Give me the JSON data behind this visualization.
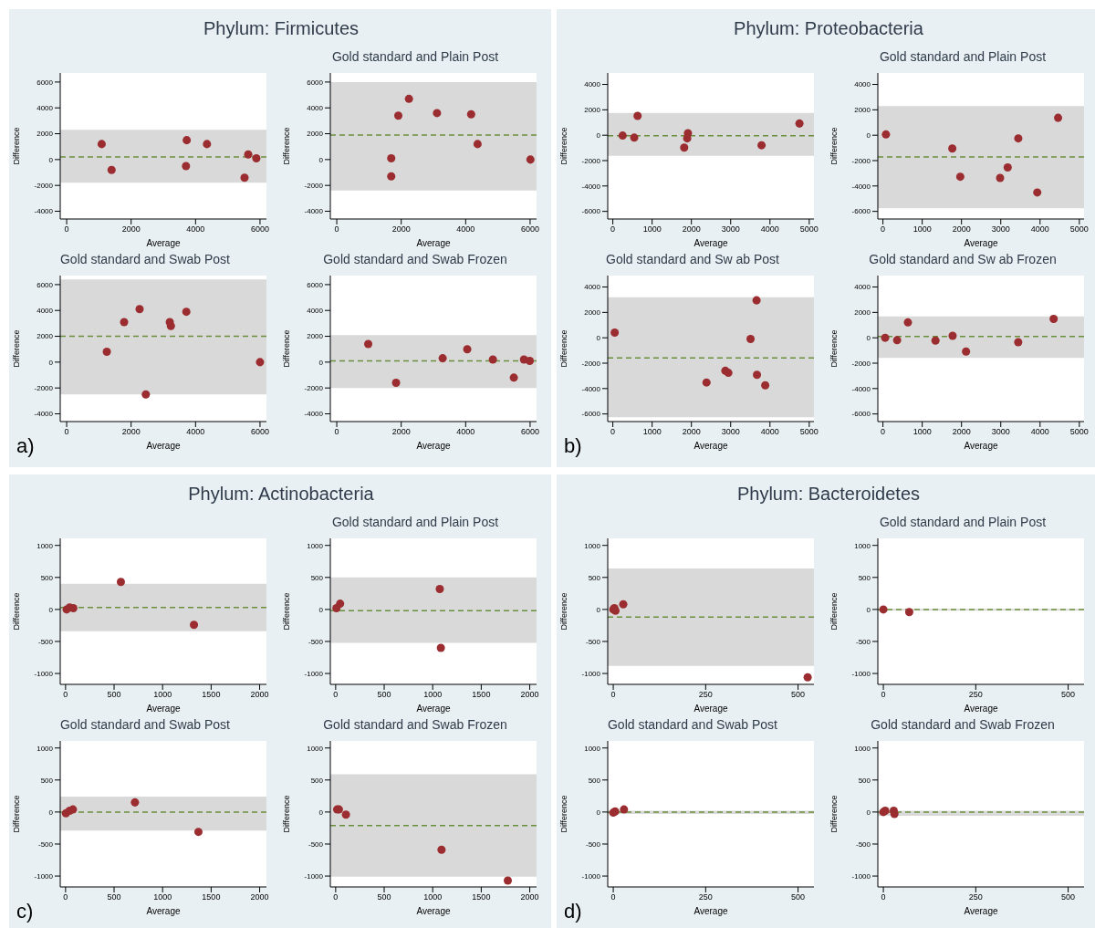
{
  "chart_data": [
    {
      "type": "scatter",
      "annotations": [
        "Phylum: Firmicutes",
        "a)"
      ],
      "xlabel": "Average",
      "ylabel": "Difference",
      "color": "#9b2d30",
      "marker": "circle",
      "x": [
        1086,
        1394,
        3726,
        3703,
        4354,
        5520,
        5634,
        5886
      ],
      "values": [
        1200,
        -800,
        1500,
        -500,
        1200,
        -1400,
        400,
        100
      ],
      "xlim": [
        -200,
        6200
      ],
      "ylim": [
        -4600,
        6700
      ],
      "xticks": [
        0,
        2000,
        4000,
        6000
      ],
      "yticks": [
        -4000,
        -2000,
        0,
        2000,
        4000,
        6000
      ],
      "bands": [
        {
          "axis": "y",
          "from": -1800,
          "to": 2300,
          "color": "#d9d9d9"
        }
      ],
      "ref_lines": [
        {
          "axis": "y",
          "value": 200,
          "color": "#6a8f3c",
          "line_style": "dashed"
        }
      ]
    },
    {
      "type": "scatter",
      "title": "Gold standard and Plain Post",
      "xlabel": "Average",
      "ylabel": "Difference",
      "color": "#9b2d30",
      "marker": "circle",
      "x": [
        1690,
        1690,
        1910,
        2240,
        3110,
        4170,
        4370,
        6010
      ],
      "values": [
        100,
        -1300,
        3400,
        4700,
        3600,
        3500,
        1200,
        0
      ],
      "xlim": [
        -200,
        6200
      ],
      "ylim": [
        -4600,
        6700
      ],
      "xticks": [
        0,
        2000,
        4000,
        6000
      ],
      "yticks": [
        -4000,
        -2000,
        0,
        2000,
        4000,
        6000
      ],
      "bands": [
        {
          "axis": "y",
          "from": -2400,
          "to": 6000,
          "color": "#d9d9d9"
        }
      ],
      "ref_lines": [
        {
          "axis": "y",
          "value": 1900,
          "color": "#6a8f3c",
          "line_style": "dashed"
        }
      ]
    },
    {
      "type": "scatter",
      "title": "Gold standard and Swab Post",
      "xlabel": "Average",
      "ylabel": "Difference",
      "color": "#9b2d30",
      "marker": "circle",
      "x": [
        1246,
        1783,
        2263,
        2457,
        3200,
        3234,
        3714,
        6000
      ],
      "values": [
        800,
        3100,
        4100,
        -2500,
        3100,
        2800,
        3900,
        0
      ],
      "xlim": [
        -200,
        6200
      ],
      "ylim": [
        -4600,
        6700
      ],
      "xticks": [
        0,
        2000,
        4000,
        6000
      ],
      "yticks": [
        -4000,
        -2000,
        0,
        2000,
        4000,
        6000
      ],
      "bands": [
        {
          "axis": "y",
          "from": -2500,
          "to": 6400,
          "color": "#d9d9d9"
        }
      ],
      "ref_lines": [
        {
          "axis": "y",
          "value": 2000,
          "color": "#6a8f3c",
          "line_style": "dashed"
        }
      ]
    },
    {
      "type": "scatter",
      "title": "Gold standard and Swab Frozen",
      "xlabel": "Average",
      "ylabel": "Difference",
      "color": "#9b2d30",
      "marker": "circle",
      "x": [
        976,
        1840,
        3286,
        4049,
        4845,
        5495,
        5809,
        5989
      ],
      "values": [
        1400,
        -1600,
        300,
        1000,
        200,
        -1200,
        200,
        100
      ],
      "xlim": [
        -200,
        6200
      ],
      "ylim": [
        -4600,
        6700
      ],
      "xticks": [
        0,
        2000,
        4000,
        6000
      ],
      "yticks": [
        -4000,
        -2000,
        0,
        2000,
        4000,
        6000
      ],
      "bands": [
        {
          "axis": "y",
          "from": -2000,
          "to": 2100,
          "color": "#d9d9d9"
        }
      ],
      "ref_lines": [
        {
          "axis": "y",
          "value": 100,
          "color": "#6a8f3c",
          "line_style": "dashed"
        }
      ]
    },
    {
      "type": "scatter",
      "annotations": [
        "Phylum: Proteobacteria",
        "b)"
      ],
      "xlabel": "Average",
      "ylabel": "Difference",
      "color": "#9b2d30",
      "marker": "circle",
      "x": [
        250,
        545,
        630,
        1817,
        1912,
        1893,
        3786,
        4751
      ],
      "values": [
        -30,
        -190,
        1520,
        -980,
        160,
        -250,
        -790,
        920
      ],
      "xlim": [
        -130,
        5120
      ],
      "ylim": [
        -6600,
        4900
      ],
      "xticks": [
        0,
        1000,
        2000,
        3000,
        4000,
        5000
      ],
      "yticks": [
        -6000,
        -4000,
        -2000,
        0,
        2000,
        4000
      ],
      "bands": [
        {
          "axis": "y",
          "from": -1620,
          "to": 1750,
          "color": "#d9d9d9"
        }
      ],
      "ref_lines": [
        {
          "axis": "y",
          "value": -50,
          "color": "#6a8f3c",
          "line_style": "dashed"
        }
      ]
    },
    {
      "type": "scatter",
      "title": "Gold standard and Plain Post",
      "xlabel": "Average",
      "ylabel": "Difference",
      "color": "#9b2d30",
      "marker": "circle",
      "x": [
        77,
        1766,
        1969,
        2983,
        3176,
        3446,
        3929,
        4459
      ],
      "values": [
        60,
        -1050,
        -3270,
        -3370,
        -2540,
        -250,
        -4510,
        1370
      ],
      "xlim": [
        -130,
        5120
      ],
      "ylim": [
        -6600,
        4900
      ],
      "xticks": [
        0,
        1000,
        2000,
        3000,
        4000,
        5000
      ],
      "yticks": [
        -6000,
        -4000,
        -2000,
        0,
        2000,
        4000
      ],
      "bands": [
        {
          "axis": "y",
          "from": -5750,
          "to": 2290,
          "color": "#d9d9d9"
        }
      ],
      "ref_lines": [
        {
          "axis": "y",
          "value": -1710,
          "color": "#6a8f3c",
          "line_style": "dashed"
        }
      ]
    },
    {
      "type": "scatter",
      "title": "Gold standard and Sw ab Post",
      "xlabel": "Average",
      "ylabel": "Difference",
      "color": "#9b2d30",
      "marker": "circle",
      "x": [
        48,
        2385,
        2864,
        2941,
        3506,
        3659,
        3669,
        3880
      ],
      "values": [
        410,
        -3520,
        -2600,
        -2760,
        -100,
        2950,
        -2920,
        -3740
      ],
      "xlim": [
        -130,
        5120
      ],
      "ylim": [
        -6600,
        4900
      ],
      "xticks": [
        0,
        1000,
        2000,
        3000,
        4000,
        5000
      ],
      "yticks": [
        -6000,
        -4000,
        -2000,
        0,
        2000,
        4000
      ],
      "bands": [
        {
          "axis": "y",
          "from": -6250,
          "to": 3200,
          "color": "#d9d9d9"
        }
      ],
      "ref_lines": [
        {
          "axis": "y",
          "value": -1590,
          "color": "#6a8f3c",
          "line_style": "dashed"
        }
      ]
    },
    {
      "type": "scatter",
      "title": "Gold standard and Sw ab Frozen",
      "xlabel": "Average",
      "ylabel": "Difference",
      "color": "#9b2d30",
      "marker": "circle",
      "x": [
        57,
        361,
        636,
        1338,
        1774,
        2116,
        3444,
        4346
      ],
      "values": [
        0,
        -190,
        1210,
        -220,
        160,
        -1080,
        -350,
        1490
      ],
      "xlim": [
        -130,
        5120
      ],
      "ylim": [
        -6600,
        4900
      ],
      "xticks": [
        0,
        1000,
        2000,
        3000,
        4000,
        5000
      ],
      "yticks": [
        -6000,
        -4000,
        -2000,
        0,
        2000,
        4000
      ],
      "bands": [
        {
          "axis": "y",
          "from": -1590,
          "to": 1680,
          "color": "#d9d9d9"
        }
      ],
      "ref_lines": [
        {
          "axis": "y",
          "value": 100,
          "color": "#6a8f3c",
          "line_style": "dashed"
        }
      ]
    },
    {
      "type": "scatter",
      "annotations": [
        "Phylum: Actinobacteria",
        "c)"
      ],
      "xlabel": "Average",
      "ylabel": "Difference",
      "color": "#9b2d30",
      "marker": "circle",
      "x": [
        11,
        42,
        80,
        570,
        1323
      ],
      "values": [
        0,
        30,
        20,
        430,
        -240
      ],
      "xlim": [
        -55,
        2070
      ],
      "ylim": [
        -1170,
        1110
      ],
      "xticks": [
        0,
        500,
        1000,
        1500,
        2000
      ],
      "yticks": [
        -1000,
        -500,
        0,
        500,
        1000
      ],
      "bands": [
        {
          "axis": "y",
          "from": -340,
          "to": 400,
          "color": "#d9d9d9"
        }
      ],
      "ref_lines": [
        {
          "axis": "y",
          "value": 30,
          "color": "#6a8f3c",
          "line_style": "dashed"
        }
      ]
    },
    {
      "type": "scatter",
      "title": "Gold standard and Plain Post",
      "xlabel": "Average",
      "ylabel": "Difference",
      "color": "#9b2d30",
      "marker": "circle",
      "x": [
        8,
        46,
        1073,
        1084
      ],
      "values": [
        20,
        90,
        320,
        -600
      ],
      "xlim": [
        -55,
        2070
      ],
      "ylim": [
        -1170,
        1110
      ],
      "xticks": [
        0,
        500,
        1000,
        1500,
        2000
      ],
      "yticks": [
        -1000,
        -500,
        0,
        500,
        1000
      ],
      "bands": [
        {
          "axis": "y",
          "from": -520,
          "to": 500,
          "color": "#d9d9d9"
        }
      ],
      "ref_lines": [
        {
          "axis": "y",
          "value": -20,
          "color": "#6a8f3c",
          "line_style": "dashed"
        }
      ]
    },
    {
      "type": "scatter",
      "title": "Gold standard and Swab Post",
      "xlabel": "Average",
      "ylabel": "Difference",
      "color": "#9b2d30",
      "marker": "circle",
      "x": [
        4,
        42,
        76,
        715,
        1369
      ],
      "values": [
        -20,
        20,
        40,
        150,
        -310
      ],
      "xlim": [
        -55,
        2070
      ],
      "ylim": [
        -1170,
        1110
      ],
      "xticks": [
        0,
        500,
        1000,
        1500,
        2000
      ],
      "yticks": [
        -1000,
        -500,
        0,
        500,
        1000
      ],
      "bands": [
        {
          "axis": "y",
          "from": -290,
          "to": 240,
          "color": "#d9d9d9"
        }
      ],
      "ref_lines": [
        {
          "axis": "y",
          "value": 0,
          "color": "#6a8f3c",
          "line_style": "dashed"
        }
      ]
    },
    {
      "type": "scatter",
      "title": "Gold standard and Swab Frozen",
      "xlabel": "Average",
      "ylabel": "Difference",
      "color": "#9b2d30",
      "marker": "circle",
      "x": [
        15,
        34,
        106,
        1091,
        1774
      ],
      "values": [
        40,
        40,
        -40,
        -590,
        -1070
      ],
      "xlim": [
        -55,
        2070
      ],
      "ylim": [
        -1170,
        1110
      ],
      "xticks": [
        0,
        500,
        1000,
        1500,
        2000
      ],
      "yticks": [
        -1000,
        -500,
        0,
        500,
        1000
      ],
      "bands": [
        {
          "axis": "y",
          "from": -1010,
          "to": 590,
          "color": "#d9d9d9"
        }
      ],
      "ref_lines": [
        {
          "axis": "y",
          "value": -210,
          "color": "#6a8f3c",
          "line_style": "dashed"
        }
      ]
    },
    {
      "type": "scatter",
      "annotations": [
        "Phylum: Bacteroidetes",
        "d)"
      ],
      "xlabel": "Average",
      "ylabel": "Difference",
      "color": "#9b2d30",
      "marker": "circle",
      "x": [
        0,
        3,
        6,
        27,
        526
      ],
      "values": [
        0,
        20,
        -20,
        80,
        -1060
      ],
      "xlim": [
        -15,
        543
      ],
      "ylim": [
        -1170,
        1110
      ],
      "xticks": [
        0,
        250,
        500
      ],
      "yticks": [
        -1000,
        -500,
        0,
        500,
        1000
      ],
      "bands": [
        {
          "axis": "y",
          "from": -880,
          "to": 640,
          "color": "#d9d9d9"
        }
      ],
      "ref_lines": [
        {
          "axis": "y",
          "value": -120,
          "color": "#6a8f3c",
          "line_style": "dashed"
        }
      ]
    },
    {
      "type": "scatter",
      "title": "Gold standard and Plain Post",
      "xlabel": "Average",
      "ylabel": "Difference",
      "color": "#9b2d30",
      "marker": "circle",
      "x": [
        0,
        70
      ],
      "values": [
        0,
        -40
      ],
      "xlim": [
        -15,
        543
      ],
      "ylim": [
        -1170,
        1110
      ],
      "xticks": [
        0,
        250,
        500
      ],
      "yticks": [
        -1000,
        -500,
        0,
        500,
        1000
      ],
      "bands": [
        {
          "axis": "y",
          "from": -20,
          "to": 10,
          "color": "#d9d9d9"
        }
      ],
      "ref_lines": [
        {
          "axis": "y",
          "value": 0,
          "color": "#6a8f3c",
          "line_style": "dashed"
        }
      ]
    },
    {
      "type": "scatter",
      "title": "Gold standard and Swab Post",
      "xlabel": "Average",
      "ylabel": "Difference",
      "color": "#9b2d30",
      "marker": "circle",
      "x": [
        0,
        5,
        29
      ],
      "values": [
        -10,
        10,
        40
      ],
      "xlim": [
        -15,
        543
      ],
      "ylim": [
        -1170,
        1110
      ],
      "xticks": [
        0,
        250,
        500
      ],
      "yticks": [
        -1000,
        -500,
        0,
        500,
        1000
      ],
      "bands": [
        {
          "axis": "y",
          "from": -30,
          "to": 20,
          "color": "#d9d9d9"
        }
      ],
      "ref_lines": [
        {
          "axis": "y",
          "value": 0,
          "color": "#6a8f3c",
          "line_style": "dashed"
        }
      ]
    },
    {
      "type": "scatter",
      "title": "Gold standard and Swab Frozen",
      "xlabel": "Average",
      "ylabel": "Difference",
      "color": "#9b2d30",
      "marker": "circle",
      "x": [
        0,
        5,
        28,
        30
      ],
      "values": [
        0,
        20,
        20,
        -30
      ],
      "xlim": [
        -15,
        543
      ],
      "ylim": [
        -1170,
        1110
      ],
      "xticks": [
        0,
        250,
        500
      ],
      "yticks": [
        -1000,
        -500,
        0,
        500,
        1000
      ],
      "bands": [
        {
          "axis": "y",
          "from": -60,
          "to": 20,
          "color": "#d9d9d9"
        }
      ],
      "ref_lines": [
        {
          "axis": "y",
          "value": 0,
          "color": "#6a8f3c",
          "line_style": "dashed"
        }
      ]
    }
  ]
}
